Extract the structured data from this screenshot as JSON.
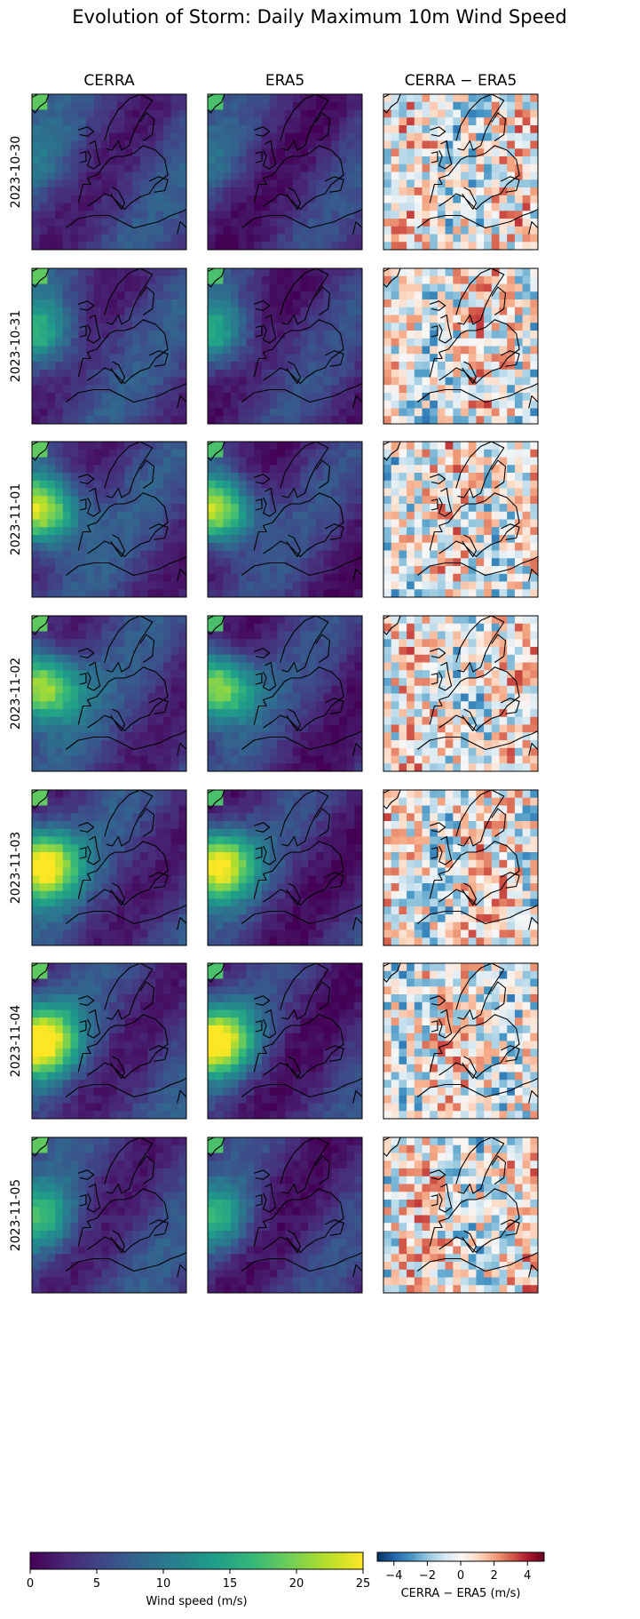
{
  "chart_data": {
    "type": "heatmap",
    "title": "Evolution of Storm: Daily Maximum 10m Wind Speed",
    "columns": [
      "CERRA",
      "ERA5",
      "CERRA − ERA5"
    ],
    "rows": [
      "2023-10-30",
      "2023-10-31",
      "2023-11-01",
      "2023-11-02",
      "2023-11-03",
      "2023-11-04",
      "2023-11-05"
    ],
    "storm_peak_intensity": [
      0.15,
      0.5,
      0.95,
      0.9,
      1.0,
      0.95,
      0.45
    ],
    "colorbars": [
      {
        "label": "Wind speed (m/s)",
        "colormap": "viridis",
        "range": [
          0,
          25
        ],
        "ticks": [
          "0",
          "5",
          "10",
          "15",
          "20",
          "25"
        ]
      },
      {
        "label": "CERRA − ERA5 (m/s)",
        "colormap": "RdBu_r",
        "range": [
          -5,
          5
        ],
        "ticks": [
          "−4",
          "−2",
          "0",
          "2",
          "4"
        ]
      }
    ],
    "colors": {
      "viridis": [
        "#440154",
        "#482878",
        "#3e4989",
        "#31688e",
        "#26828e",
        "#1f9e89",
        "#35b779",
        "#6ece58",
        "#b5de2b",
        "#fde725"
      ],
      "rdbu": [
        "#053061",
        "#2166ac",
        "#4393c3",
        "#92c5de",
        "#d1e5f0",
        "#f7f7f7",
        "#fddbc7",
        "#f4a582",
        "#d6604d",
        "#b2182b",
        "#67001f"
      ]
    }
  }
}
